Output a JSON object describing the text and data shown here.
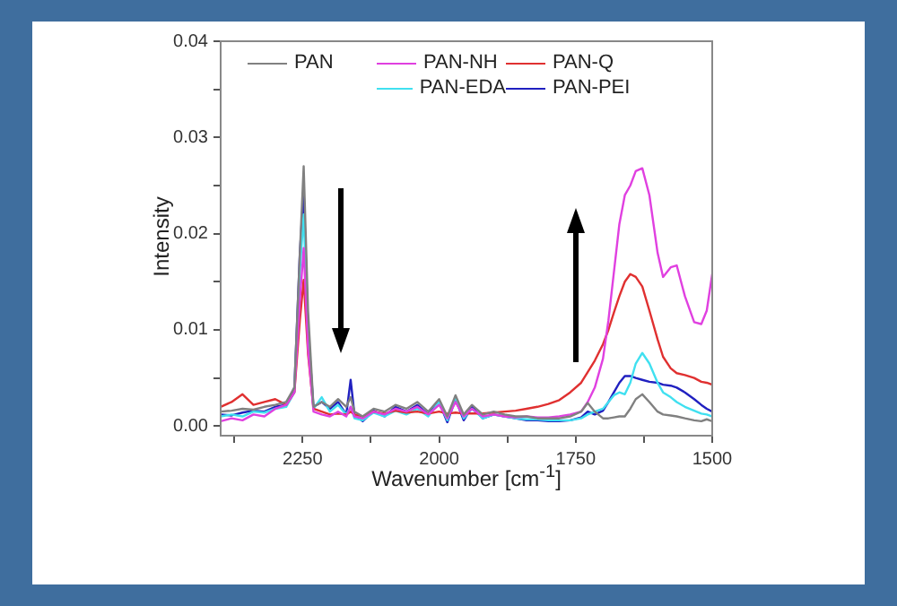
{
  "chart_data": {
    "type": "line",
    "xlabel": "Wavenumber [cm$^{-1}$]",
    "ylabel": "Intensity",
    "x": [
      2400,
      2380,
      2360,
      2340,
      2320,
      2300,
      2280,
      2265,
      2255,
      2248,
      2240,
      2230,
      2215,
      2200,
      2185,
      2170,
      2162,
      2155,
      2140,
      2120,
      2100,
      2080,
      2060,
      2040,
      2020,
      2000,
      1985,
      1970,
      1955,
      1940,
      1920,
      1900,
      1880,
      1860,
      1840,
      1820,
      1800,
      1780,
      1760,
      1740,
      1728,
      1715,
      1700,
      1690,
      1680,
      1670,
      1660,
      1650,
      1640,
      1628,
      1615,
      1600,
      1590,
      1576,
      1565,
      1550,
      1533,
      1520,
      1510,
      1500
    ],
    "series": [
      {
        "name": "PAN",
        "color": "#808080",
        "values": [
          0.0015,
          0.0016,
          0.0018,
          0.0017,
          0.002,
          0.0022,
          0.0025,
          0.004,
          0.018,
          0.027,
          0.012,
          0.002,
          0.0025,
          0.002,
          0.0028,
          0.002,
          0.003,
          0.0015,
          0.001,
          0.0018,
          0.0015,
          0.0022,
          0.0018,
          0.0025,
          0.0015,
          0.0028,
          0.001,
          0.0032,
          0.0012,
          0.0022,
          0.0012,
          0.0015,
          0.0012,
          0.001,
          0.001,
          0.0008,
          0.0008,
          0.0008,
          0.001,
          0.0015,
          0.0024,
          0.0015,
          0.0008,
          0.0008,
          0.0009,
          0.001,
          0.001,
          0.0018,
          0.0028,
          0.0033,
          0.0025,
          0.0015,
          0.0012,
          0.0011,
          0.001,
          0.0008,
          0.0006,
          0.0005,
          0.0007,
          0.0005
        ]
      },
      {
        "name": "PAN-NH",
        "color": "#e040e0",
        "values": [
          0.0005,
          0.0008,
          0.0006,
          0.0012,
          0.001,
          0.0018,
          0.0022,
          0.0035,
          0.013,
          0.0185,
          0.008,
          0.0015,
          0.0012,
          0.001,
          0.0015,
          0.001,
          0.002,
          0.001,
          0.0008,
          0.0015,
          0.0012,
          0.0018,
          0.0015,
          0.002,
          0.0012,
          0.0022,
          0.0008,
          0.0025,
          0.001,
          0.0018,
          0.001,
          0.0012,
          0.001,
          0.0009,
          0.001,
          0.0009,
          0.0009,
          0.001,
          0.0012,
          0.0015,
          0.0025,
          0.004,
          0.007,
          0.011,
          0.016,
          0.021,
          0.024,
          0.025,
          0.0265,
          0.0268,
          0.024,
          0.018,
          0.0155,
          0.0165,
          0.0167,
          0.0135,
          0.0108,
          0.0106,
          0.012,
          0.0158
        ]
      },
      {
        "name": "PAN-Q",
        "color": "#e03030",
        "values": [
          0.002,
          0.0025,
          0.0033,
          0.0022,
          0.0025,
          0.0028,
          0.0022,
          0.0035,
          0.011,
          0.0152,
          0.0075,
          0.0018,
          0.0015,
          0.0012,
          0.0013,
          0.0012,
          0.0015,
          0.0012,
          0.001,
          0.0015,
          0.0013,
          0.0016,
          0.0014,
          0.0015,
          0.0013,
          0.0015,
          0.0013,
          0.0014,
          0.0013,
          0.0013,
          0.0013,
          0.0014,
          0.0015,
          0.0016,
          0.0018,
          0.002,
          0.0023,
          0.0027,
          0.0035,
          0.0045,
          0.0056,
          0.0068,
          0.0085,
          0.01,
          0.0118,
          0.0135,
          0.015,
          0.0158,
          0.0155,
          0.0145,
          0.012,
          0.009,
          0.0072,
          0.006,
          0.0055,
          0.0053,
          0.005,
          0.0046,
          0.0045,
          0.0043
        ]
      },
      {
        "name": "PAN-EDA",
        "color": "#40e0f0",
        "values": [
          0.001,
          0.0012,
          0.001,
          0.0015,
          0.0014,
          0.0018,
          0.002,
          0.0035,
          0.016,
          0.022,
          0.009,
          0.0018,
          0.003,
          0.0015,
          0.0022,
          0.0012,
          0.002,
          0.0008,
          0.0006,
          0.0014,
          0.001,
          0.0016,
          0.0012,
          0.0018,
          0.001,
          0.0025,
          0.0006,
          0.003,
          0.0008,
          0.0018,
          0.0008,
          0.0012,
          0.001,
          0.0008,
          0.0007,
          0.0007,
          0.0006,
          0.0006,
          0.0006,
          0.0008,
          0.0012,
          0.0015,
          0.0018,
          0.0025,
          0.0032,
          0.0035,
          0.0033,
          0.0045,
          0.0065,
          0.0076,
          0.0065,
          0.0045,
          0.0035,
          0.003,
          0.0025,
          0.002,
          0.0016,
          0.0013,
          0.0012,
          0.001
        ]
      },
      {
        "name": "PAN-PEI",
        "color": "#2020c0",
        "values": [
          0.0012,
          0.0011,
          0.0014,
          0.0016,
          0.0015,
          0.002,
          0.0022,
          0.004,
          0.018,
          0.0245,
          0.01,
          0.002,
          0.0025,
          0.0018,
          0.0025,
          0.0012,
          0.0048,
          0.0012,
          0.0005,
          0.0016,
          0.001,
          0.002,
          0.0015,
          0.0022,
          0.0012,
          0.0025,
          0.0004,
          0.0028,
          0.0006,
          0.002,
          0.0008,
          0.0012,
          0.001,
          0.0008,
          0.0006,
          0.0006,
          0.0005,
          0.0005,
          0.0006,
          0.0009,
          0.0015,
          0.0012,
          0.0016,
          0.0025,
          0.0035,
          0.0045,
          0.0052,
          0.0052,
          0.005,
          0.0048,
          0.0046,
          0.0045,
          0.0043,
          0.0042,
          0.004,
          0.0035,
          0.0028,
          0.0022,
          0.0018,
          0.0015
        ]
      }
    ],
    "xlim": [
      2400,
      1500
    ],
    "xticks": [
      {
        "value": 2375,
        "label": null
      },
      2250,
      {
        "value": 2125,
        "label": null
      },
      2000,
      {
        "value": 1875,
        "label": null
      },
      1750,
      {
        "value": 1625,
        "label": null
      },
      1500
    ],
    "ylim": [
      -0.001,
      0.04
    ],
    "yticks": [
      {
        "value": 0,
        "label": "0.00"
      },
      {
        "value": 0.005,
        "label": null
      },
      {
        "value": 0.01,
        "label": "0.01"
      },
      {
        "value": 0.015,
        "label": null
      },
      {
        "value": 0.02,
        "label": "0.02"
      },
      {
        "value": 0.025,
        "label": null
      },
      {
        "value": 0.03,
        "label": "0.03"
      },
      {
        "value": 0.035,
        "label": null
      },
      {
        "value": 0.04,
        "label": "0.04"
      }
    ],
    "grid": false,
    "legend": "top",
    "marker": "none",
    "line_style": "solid"
  }
}
